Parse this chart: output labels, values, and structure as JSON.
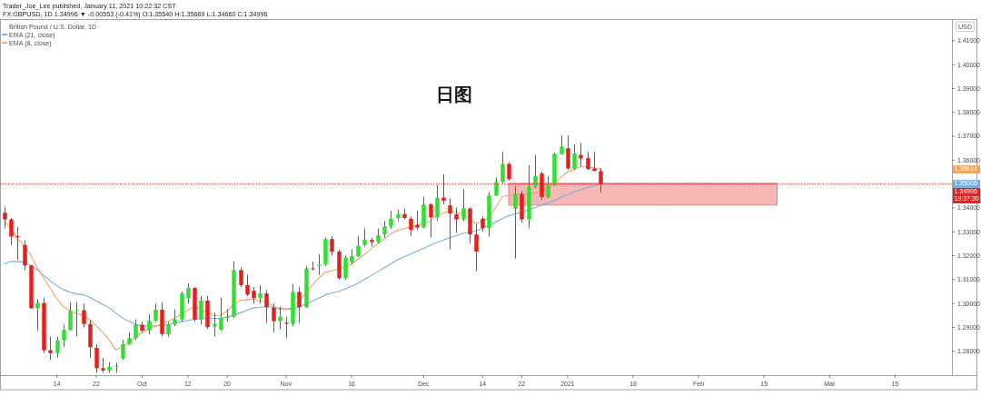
{
  "chart_data": {
    "type": "candlestick",
    "title": "日图",
    "ylabel": "USD",
    "annotations": [
      "Trader_Joe_Lee published, January 11, 2021 10:22:32 CST",
      "FX:GBPUSD, 1D 1.34996 ▼ -0.00553 (-0.41%) O:1.35540 H:1.35669 L:1.34660 C:1.34996",
      "British Pound / U.S. Dollar, 1D",
      "1.35614",
      "1.35005"
    ],
    "categories": [
      null,
      null,
      null,
      null,
      null,
      null,
      null,
      null,
      "14",
      null,
      null,
      null,
      null,
      null,
      "22",
      null,
      null,
      null,
      null,
      null,
      null,
      "Oct",
      null,
      null,
      null,
      null,
      null,
      null,
      "12",
      null,
      null,
      null,
      null,
      null,
      "20",
      null,
      null,
      null,
      null,
      null,
      null,
      null,
      null,
      "Nov",
      null,
      null,
      null,
      null,
      null,
      null,
      null,
      null,
      null,
      "16",
      null,
      null,
      null,
      null,
      null,
      null,
      null,
      null,
      null,
      null,
      "Dec",
      null,
      null,
      null,
      null,
      null,
      null,
      null,
      null,
      "14",
      null,
      null,
      null,
      null,
      null,
      "22",
      null,
      null,
      null,
      null,
      null,
      null,
      "2021",
      null,
      null,
      null,
      null,
      null,
      null,
      null,
      null,
      null,
      "18",
      null,
      null,
      null,
      null,
      null,
      null,
      null,
      null,
      null,
      "Feb",
      null,
      null,
      null,
      null,
      null,
      null,
      null,
      null,
      null,
      "15",
      null,
      null,
      null,
      null,
      null,
      null,
      null,
      null,
      null,
      "Mar",
      null,
      null,
      null,
      null,
      null,
      null,
      null,
      null,
      null,
      "15",
      null,
      null,
      null,
      null,
      null,
      null,
      null,
      null
    ],
    "ohlc": [
      [
        1.338,
        1.3404,
        1.3314,
        1.3352
      ],
      [
        1.3352,
        1.3358,
        1.3245,
        1.328
      ],
      [
        1.3282,
        1.332,
        1.3182,
        1.3278
      ],
      [
        1.3245,
        1.3264,
        1.314,
        1.3159
      ],
      [
        1.3159,
        1.3162,
        1.2977,
        1.298
      ],
      [
        1.298,
        1.3018,
        1.2886,
        1.3002
      ],
      [
        1.3002,
        1.3025,
        1.2792,
        1.2804
      ],
      [
        1.2804,
        1.2861,
        1.2763,
        1.2792
      ],
      [
        1.2792,
        1.2861,
        1.2773,
        1.2846
      ],
      [
        1.2846,
        1.2911,
        1.2817,
        1.2889
      ],
      [
        1.2889,
        1.3006,
        1.2886,
        1.2968
      ],
      [
        1.2968,
        1.3006,
        1.2861,
        1.2972
      ],
      [
        1.2972,
        1.2999,
        1.2899,
        1.2914
      ],
      [
        1.2914,
        1.293,
        1.2773,
        1.2817
      ],
      [
        1.2814,
        1.283,
        1.271,
        1.2729
      ],
      [
        1.2729,
        1.2773,
        1.271,
        1.272
      ],
      [
        1.272,
        1.2754,
        1.271,
        1.2735
      ],
      [
        1.2735,
        1.2752,
        1.271,
        1.2739
      ],
      [
        1.2769,
        1.2848,
        1.2765,
        1.283
      ],
      [
        1.283,
        1.288,
        1.2826,
        1.2855
      ],
      [
        1.2855,
        1.2934,
        1.2848,
        1.2911
      ],
      [
        1.2911,
        1.2924,
        1.288,
        1.2886
      ],
      [
        1.2886,
        1.2955,
        1.2871,
        1.2928
      ],
      [
        1.2928,
        1.2999,
        1.2924,
        1.2974
      ],
      [
        1.2974,
        1.3006,
        1.2862,
        1.2872
      ],
      [
        1.287,
        1.2924,
        1.2861,
        1.2914
      ],
      [
        1.2914,
        1.2975,
        1.2905,
        1.2934
      ],
      [
        1.2933,
        1.305,
        1.2924,
        1.3043
      ],
      [
        1.3022,
        1.3084,
        1.3,
        1.3065
      ],
      [
        1.3065,
        1.3068,
        1.2924,
        1.2933
      ],
      [
        1.2933,
        1.3031,
        1.2911,
        1.3012
      ],
      [
        1.3012,
        1.3031,
        1.2893,
        1.2901
      ],
      [
        1.2903,
        1.2962,
        1.2861,
        1.2914
      ],
      [
        1.289,
        1.3025,
        1.2886,
        1.294
      ],
      [
        1.2939,
        1.2977,
        1.2924,
        1.2945
      ],
      [
        1.2945,
        1.3178,
        1.2939,
        1.314
      ],
      [
        1.314,
        1.315,
        1.3069,
        1.3077
      ],
      [
        1.3077,
        1.3121,
        1.3031,
        1.3037
      ],
      [
        1.3053,
        1.3069,
        1.2999,
        1.3022
      ],
      [
        1.3022,
        1.3077,
        1.2999,
        1.3042
      ],
      [
        1.3042,
        1.3056,
        1.2918,
        1.2984
      ],
      [
        1.2982,
        1.2999,
        1.288,
        1.2926
      ],
      [
        1.2926,
        1.2987,
        1.2892,
        1.2945
      ],
      [
        1.292,
        1.2945,
        1.2855,
        1.2915
      ],
      [
        1.2915,
        1.3081,
        1.2905,
        1.3048
      ],
      [
        1.3048,
        1.3069,
        1.2918,
        1.2984
      ],
      [
        1.2984,
        1.3157,
        1.2981,
        1.3147
      ],
      [
        1.3147,
        1.3176,
        1.3138,
        1.3144
      ],
      [
        1.3158,
        1.3207,
        1.3119,
        1.3163
      ],
      [
        1.3163,
        1.3276,
        1.3157,
        1.327
      ],
      [
        1.327,
        1.3282,
        1.3201,
        1.3217
      ],
      [
        1.3217,
        1.3226,
        1.31,
        1.3106
      ],
      [
        1.3106,
        1.3201,
        1.31,
        1.3192
      ],
      [
        1.3173,
        1.3226,
        1.3163,
        1.3198
      ],
      [
        1.3198,
        1.3282,
        1.3194,
        1.3242
      ],
      [
        1.3245,
        1.3314,
        1.3238,
        1.3266
      ],
      [
        1.3266,
        1.3276,
        1.3238,
        1.3257
      ],
      [
        1.3257,
        1.3314,
        1.3251,
        1.3285
      ],
      [
        1.3289,
        1.3345,
        1.3276,
        1.3323
      ],
      [
        1.3323,
        1.3389,
        1.3314,
        1.3355
      ],
      [
        1.3358,
        1.3392,
        1.3345,
        1.3374
      ],
      [
        1.3374,
        1.3396,
        1.3352,
        1.3358
      ],
      [
        1.3355,
        1.3364,
        1.3282,
        1.3308
      ],
      [
        1.3329,
        1.3389,
        1.3308,
        1.3318
      ],
      [
        1.3318,
        1.3446,
        1.3314,
        1.3415
      ],
      [
        1.3415,
        1.3421,
        1.3276,
        1.3361
      ],
      [
        1.3361,
        1.3496,
        1.3345,
        1.3443
      ],
      [
        1.3443,
        1.354,
        1.3415,
        1.343
      ],
      [
        1.3411,
        1.344,
        1.3226,
        1.3377
      ],
      [
        1.3374,
        1.3402,
        1.3295,
        1.3352
      ],
      [
        1.3352,
        1.3477,
        1.3345,
        1.3398
      ],
      [
        1.3398,
        1.3402,
        1.3251,
        1.3289
      ],
      [
        1.3289,
        1.3333,
        1.3134,
        1.3217
      ],
      [
        1.3355,
        1.3364,
        1.3301,
        1.3316
      ],
      [
        1.3316,
        1.3465,
        1.3279,
        1.3452
      ],
      [
        1.3452,
        1.3528,
        1.345,
        1.3509
      ],
      [
        1.3509,
        1.3635,
        1.3502,
        1.3584
      ],
      [
        1.3584,
        1.3591,
        1.3515,
        1.3521
      ],
      [
        1.3396,
        1.349,
        1.3188,
        1.3459
      ],
      [
        1.3459,
        1.3471,
        1.3339,
        1.3352
      ],
      [
        1.3352,
        1.3578,
        1.3314,
        1.3487
      ],
      [
        1.3487,
        1.3622,
        1.3482,
        1.3534
      ],
      [
        1.3544,
        1.3553,
        1.3433,
        1.3446
      ],
      [
        1.3446,
        1.3534,
        1.344,
        1.3496
      ],
      [
        1.3496,
        1.3631,
        1.3492,
        1.3626
      ],
      [
        1.3626,
        1.3704,
        1.3622,
        1.3657
      ],
      [
        1.365,
        1.3704,
        1.3559,
        1.3565
      ],
      [
        1.3565,
        1.3666,
        1.3559,
        1.3628
      ],
      [
        1.3622,
        1.3672,
        1.3572,
        1.3607
      ],
      [
        1.3609,
        1.3635,
        1.3559,
        1.3563
      ],
      [
        1.3565,
        1.3635,
        1.3553,
        1.3555
      ],
      [
        1.3554,
        1.35669,
        1.3466,
        1.34996
      ],
      null,
      null,
      null,
      null,
      null,
      null,
      null,
      null,
      null,
      null,
      null,
      null,
      null,
      null,
      null,
      null,
      null,
      null,
      null,
      null,
      null,
      null,
      null,
      null,
      null,
      null,
      null,
      null,
      null,
      null,
      null,
      null,
      null,
      null,
      null,
      null,
      null,
      null,
      null,
      null,
      null,
      null,
      null,
      null,
      null,
      null,
      null,
      null,
      null,
      null,
      null,
      null,
      null
    ],
    "colors": [
      "#e5201c",
      "#e5201c",
      "#e5201c",
      "#e5201c",
      "#e5201c",
      "#2fe02f",
      "#e5201c",
      "#e5201c",
      "#2fe02f",
      "#2fe02f",
      "#2fe02f",
      "#2fe02f",
      "#e5201c",
      "#e5201c",
      "#e5201c",
      "#e5201c",
      "#2fe02f",
      "#2fe02f",
      "#2fe02f",
      "#2fe02f",
      "#2fe02f",
      "#e5201c",
      "#2fe02f",
      "#2fe02f",
      "#e5201c",
      "#2fe02f",
      "#2fe02f",
      "#2fe02f",
      "#2fe02f",
      "#e5201c",
      "#2fe02f",
      "#e5201c",
      "#2fe02f",
      "#2fe02f",
      "#2fe02f",
      "#2fe02f",
      "#e5201c",
      "#e5201c",
      "#e5201c",
      "#2fe02f",
      "#e5201c",
      "#e5201c",
      "#2fe02f",
      "#e5201c",
      "#2fe02f",
      "#e5201c",
      "#2fe02f",
      "#e5201c",
      "#2fe02f",
      "#2fe02f",
      "#e5201c",
      "#e5201c",
      "#2fe02f",
      "#2fe02f",
      "#2fe02f",
      "#2fe02f",
      "#e5201c",
      "#2fe02f",
      "#2fe02f",
      "#2fe02f",
      "#2fe02f",
      "#e5201c",
      "#e5201c",
      "#e5201c",
      "#2fe02f",
      "#e5201c",
      "#2fe02f",
      "#e5201c",
      "#e5201c",
      "#e5201c",
      "#2fe02f",
      "#e5201c",
      "#e5201c",
      "#e5201c",
      "#2fe02f",
      "#2fe02f",
      "#2fe02f",
      "#e5201c",
      "#2fe02f",
      "#e5201c",
      "#2fe02f",
      "#2fe02f",
      "#e5201c",
      "#2fe02f",
      "#2fe02f",
      "#2fe02f",
      "#e5201c",
      "#2fe02f",
      "#e5201c",
      "#e5201c",
      "#e5201c",
      "#e5201c",
      null,
      null,
      null,
      null,
      null,
      null,
      null,
      null,
      null,
      null,
      null,
      null,
      null,
      null,
      null,
      null,
      null,
      null,
      null,
      null,
      null,
      null,
      null,
      null,
      null,
      null,
      null,
      null,
      null,
      null,
      null,
      null,
      null,
      null,
      null,
      null,
      null,
      null,
      null,
      null,
      null,
      null,
      null,
      null,
      null,
      null,
      null,
      null,
      null,
      null,
      null,
      null,
      null
    ],
    "series": [
      {
        "type": "line",
        "color": "#ee7c78",
        "values": [
          null,
          null,
          null,
          null,
          null,
          null,
          null,
          null,
          null,
          null,
          null,
          null,
          null,
          null,
          null,
          null,
          null,
          null,
          null,
          null,
          null,
          null,
          null,
          null,
          null,
          null,
          null,
          null,
          null,
          null,
          null,
          null,
          null,
          null,
          null,
          null,
          null,
          null,
          null,
          null,
          null,
          null,
          null,
          null,
          null,
          null,
          null,
          null,
          null,
          null,
          null,
          null,
          null,
          null,
          null,
          null,
          null,
          null,
          null,
          null,
          null,
          null,
          null,
          null,
          null,
          null,
          null,
          null,
          null,
          null,
          null,
          null,
          null,
          null,
          null,
          null,
          null,
          1.3502,
          1.3502,
          1.3502,
          1.3502,
          1.3502,
          1.3502,
          1.3502,
          1.3502,
          1.3502,
          1.3502,
          1.3502,
          1.3502,
          1.3502,
          1.3502,
          1.3502,
          1.3502,
          1.3502,
          1.3502,
          1.3502,
          1.3502,
          1.3502,
          1.3502,
          1.3502,
          1.3502,
          1.3502,
          1.3502,
          1.3502,
          1.3502,
          1.3502,
          1.3502,
          1.3502,
          1.3502,
          1.3502,
          1.3502,
          1.3502,
          1.3502,
          1.3502,
          1.3502,
          1.3502,
          1.3502,
          1.3502,
          1.3502,
          null,
          null,
          null,
          null,
          null,
          null,
          null,
          null,
          null,
          null,
          null,
          null,
          null,
          null,
          null,
          null,
          null,
          null,
          null,
          null,
          null,
          null,
          null,
          null,
          null,
          null
        ],
        "upper": [
          null,
          null,
          null,
          null,
          null,
          null,
          null,
          null,
          null,
          null,
          null,
          null,
          null,
          null,
          null,
          null,
          null,
          null,
          null,
          null,
          null,
          null,
          null,
          null,
          null,
          null,
          null,
          null,
          null,
          null,
          null,
          null,
          null,
          null,
          null,
          null,
          null,
          null,
          null,
          null,
          null,
          null,
          null,
          null,
          null,
          null,
          null,
          null,
          null,
          null,
          null,
          null,
          null,
          null,
          null,
          null,
          null,
          null,
          null,
          null,
          null,
          null,
          null,
          null,
          null,
          null,
          null,
          null,
          null,
          null,
          null,
          null,
          null,
          null,
          null,
          null,
          null,
          1.3502,
          1.3502,
          1.3502,
          1.3502,
          1.3502,
          1.3502,
          1.3502,
          1.3502,
          1.3502,
          1.3502,
          1.3502,
          1.3502,
          1.3502,
          1.3502,
          1.3502,
          1.3502,
          1.3502,
          1.3502,
          1.3502,
          1.3502,
          1.3502,
          1.3502,
          1.3502,
          1.3502,
          1.3502,
          1.3502,
          1.3502,
          1.3502,
          1.3502,
          1.3502,
          1.3502,
          1.3502,
          1.3502,
          1.3502,
          1.3502,
          1.3502,
          1.3502,
          1.3502,
          1.3502,
          1.3502,
          1.3502,
          1.3502,
          null,
          null,
          null,
          null,
          null,
          null,
          null,
          null,
          null,
          null,
          null,
          null,
          null,
          null,
          null,
          null,
          null,
          null,
          null,
          null,
          null,
          null,
          null,
          null,
          null,
          null
        ],
        "lower": [
          null,
          null,
          null,
          null,
          null,
          null,
          null,
          null,
          null,
          null,
          null,
          null,
          null,
          null,
          null,
          null,
          null,
          null,
          null,
          null,
          null,
          null,
          null,
          null,
          null,
          null,
          null,
          null,
          null,
          null,
          null,
          null,
          null,
          null,
          null,
          null,
          null,
          null,
          null,
          null,
          null,
          null,
          null,
          null,
          null,
          null,
          null,
          null,
          null,
          null,
          null,
          null,
          null,
          null,
          null,
          null,
          null,
          null,
          null,
          null,
          null,
          null,
          null,
          null,
          null,
          null,
          null,
          null,
          null,
          null,
          null,
          null,
          null,
          null,
          null,
          null,
          null,
          1.3412,
          1.3412,
          1.3412,
          1.3412,
          1.3412,
          1.3412,
          1.3412,
          1.3412,
          1.3412,
          1.3412,
          1.3412,
          1.3412,
          1.3412,
          1.3412,
          1.3412,
          1.3412,
          1.3412,
          1.3412,
          1.3412,
          1.3412,
          1.3412,
          1.3412,
          1.3412,
          1.3412,
          1.3412,
          1.3412,
          1.3412,
          1.3412,
          1.3412,
          1.3412,
          1.3412,
          1.3412,
          1.3412,
          1.3412,
          1.3412,
          1.3412,
          1.3412,
          1.3412,
          1.3412,
          1.3412,
          1.3412,
          1.3412,
          null,
          null,
          null,
          null,
          null,
          null,
          null,
          null,
          null,
          null,
          null,
          null,
          null,
          null,
          null,
          null,
          null,
          null,
          null,
          null,
          null,
          null,
          null,
          null,
          null,
          null
        ]
      },
      {
        "name": "EMA (21, close)",
        "type": "line",
        "color": "#75aee0",
        "values": [
          1.3166,
          1.3176,
          1.3176,
          1.3173,
          1.3158,
          1.3142,
          1.3117,
          1.3094,
          1.3074,
          1.3058,
          1.3047,
          1.304,
          1.3036,
          1.3026,
          1.3011,
          1.2997,
          1.2981,
          1.296,
          1.294,
          1.2925,
          1.2912,
          1.2906,
          1.2906,
          1.2907,
          1.2909,
          1.2911,
          1.2917,
          1.2924,
          1.2929,
          1.2934,
          1.2937,
          1.2939,
          1.2937,
          1.2938,
          1.2943,
          1.2951,
          1.2961,
          1.2971,
          1.2981,
          1.2984,
          1.2987,
          1.2984,
          1.298,
          1.2977,
          1.2975,
          1.2987,
          1.2997,
          1.301,
          1.3022,
          1.3036,
          1.3044,
          1.305,
          1.3061,
          1.3072,
          1.3085,
          1.3101,
          1.3117,
          1.3133,
          1.315,
          1.3166,
          1.3182,
          1.3195,
          1.3207,
          1.3219,
          1.3231,
          1.3244,
          1.3255,
          1.3266,
          1.3275,
          1.3284,
          1.3293,
          1.3299,
          1.3304,
          1.3315,
          1.3326,
          1.334,
          1.3355,
          1.3367,
          1.3376,
          1.3382,
          1.3392,
          1.3401,
          1.3411,
          1.3421,
          1.3432,
          1.3444,
          1.3456,
          1.3467,
          1.3478,
          1.3485,
          1.3492,
          1.35,
          null,
          null,
          null,
          null,
          null,
          null,
          null,
          null,
          null,
          null,
          null,
          null,
          null,
          null,
          null,
          null,
          null,
          null,
          null,
          null,
          null,
          null,
          null,
          null,
          null,
          null,
          null,
          null,
          null,
          null,
          null,
          null,
          null,
          null,
          null,
          null,
          null,
          null,
          null,
          null,
          null,
          null,
          null,
          null,
          null,
          null,
          null,
          null,
          null,
          null,
          null,
          null,
          null
        ]
      },
      {
        "name": "EMA (8, close)",
        "type": "line",
        "color": "#f2a25c",
        "values": [
          1.3345,
          1.331,
          1.327,
          1.3243,
          1.3204,
          1.315,
          1.3106,
          1.3063,
          1.3019,
          1.2986,
          1.2969,
          1.2958,
          1.2951,
          1.2932,
          1.2907,
          1.2878,
          1.2848,
          1.2805,
          1.2819,
          1.2835,
          1.286,
          1.2878,
          1.2895,
          1.2904,
          1.2913,
          1.2925,
          1.294,
          1.2953,
          1.2972,
          1.2986,
          1.2973,
          1.2962,
          1.2949,
          1.295,
          1.2969,
          1.2996,
          1.3013,
          1.3016,
          1.3018,
          1.3011,
          1.3006,
          1.2989,
          1.2975,
          1.2974,
          1.2985,
          1.301,
          1.3042,
          1.3076,
          1.3106,
          1.3131,
          1.3137,
          1.3144,
          1.3152,
          1.3165,
          1.3185,
          1.3207,
          1.3229,
          1.325,
          1.327,
          1.3291,
          1.3306,
          1.3313,
          1.332,
          1.3327,
          1.3336,
          1.3345,
          1.3366,
          1.3378,
          1.3386,
          1.3382,
          1.3376,
          1.3353,
          1.3336,
          1.3342,
          1.3363,
          1.3399,
          1.3447,
          1.3452,
          1.3457,
          1.3458,
          1.3458,
          1.3462,
          1.3474,
          1.3486,
          1.35,
          1.3531,
          1.355,
          1.3563,
          1.3572,
          1.3572,
          1.3568,
          1.3561,
          null,
          null,
          null,
          null,
          null,
          null,
          null,
          null,
          null,
          null,
          null,
          null,
          null,
          null,
          null,
          null,
          null,
          null,
          null,
          null,
          null,
          null,
          null,
          null,
          null,
          null,
          null,
          null,
          null,
          null,
          null,
          null,
          null,
          null,
          null,
          null,
          null,
          null,
          null,
          null,
          null,
          null,
          null,
          null,
          null,
          null,
          null,
          null,
          null,
          null,
          null,
          null,
          null
        ]
      }
    ],
    "ylim": [
      1.27,
      1.4187
    ],
    "yticks": [
      {
        "value": 1.28,
        "label": "1.28000"
      },
      {
        "value": 1.29,
        "label": "1.29000"
      },
      {
        "value": 1.3,
        "label": "1.30000"
      },
      {
        "value": 1.31,
        "label": "1.31000"
      },
      {
        "value": 1.32,
        "label": "1.32000"
      },
      {
        "value": 1.33,
        "label": "1.33000"
      },
      {
        "value": 1.34,
        "label": "1.34000"
      },
      {
        "value": 1.36,
        "label": "1.36000"
      },
      {
        "value": 1.37,
        "label": "1.37000"
      },
      {
        "value": 1.38,
        "label": "1.38000"
      },
      {
        "value": 1.39,
        "label": "1.39000"
      },
      {
        "value": 1.4,
        "label": "1.40000"
      },
      {
        "value": 1.41,
        "label": "1.41000"
      }
    ],
    "ref_lines": [
      {
        "axis": "y",
        "value": 1.34996,
        "label": "1.34996\n19:37:30",
        "color": "#e8201c",
        "line_style": "dotted"
      }
    ],
    "legend": "top left"
  }
}
